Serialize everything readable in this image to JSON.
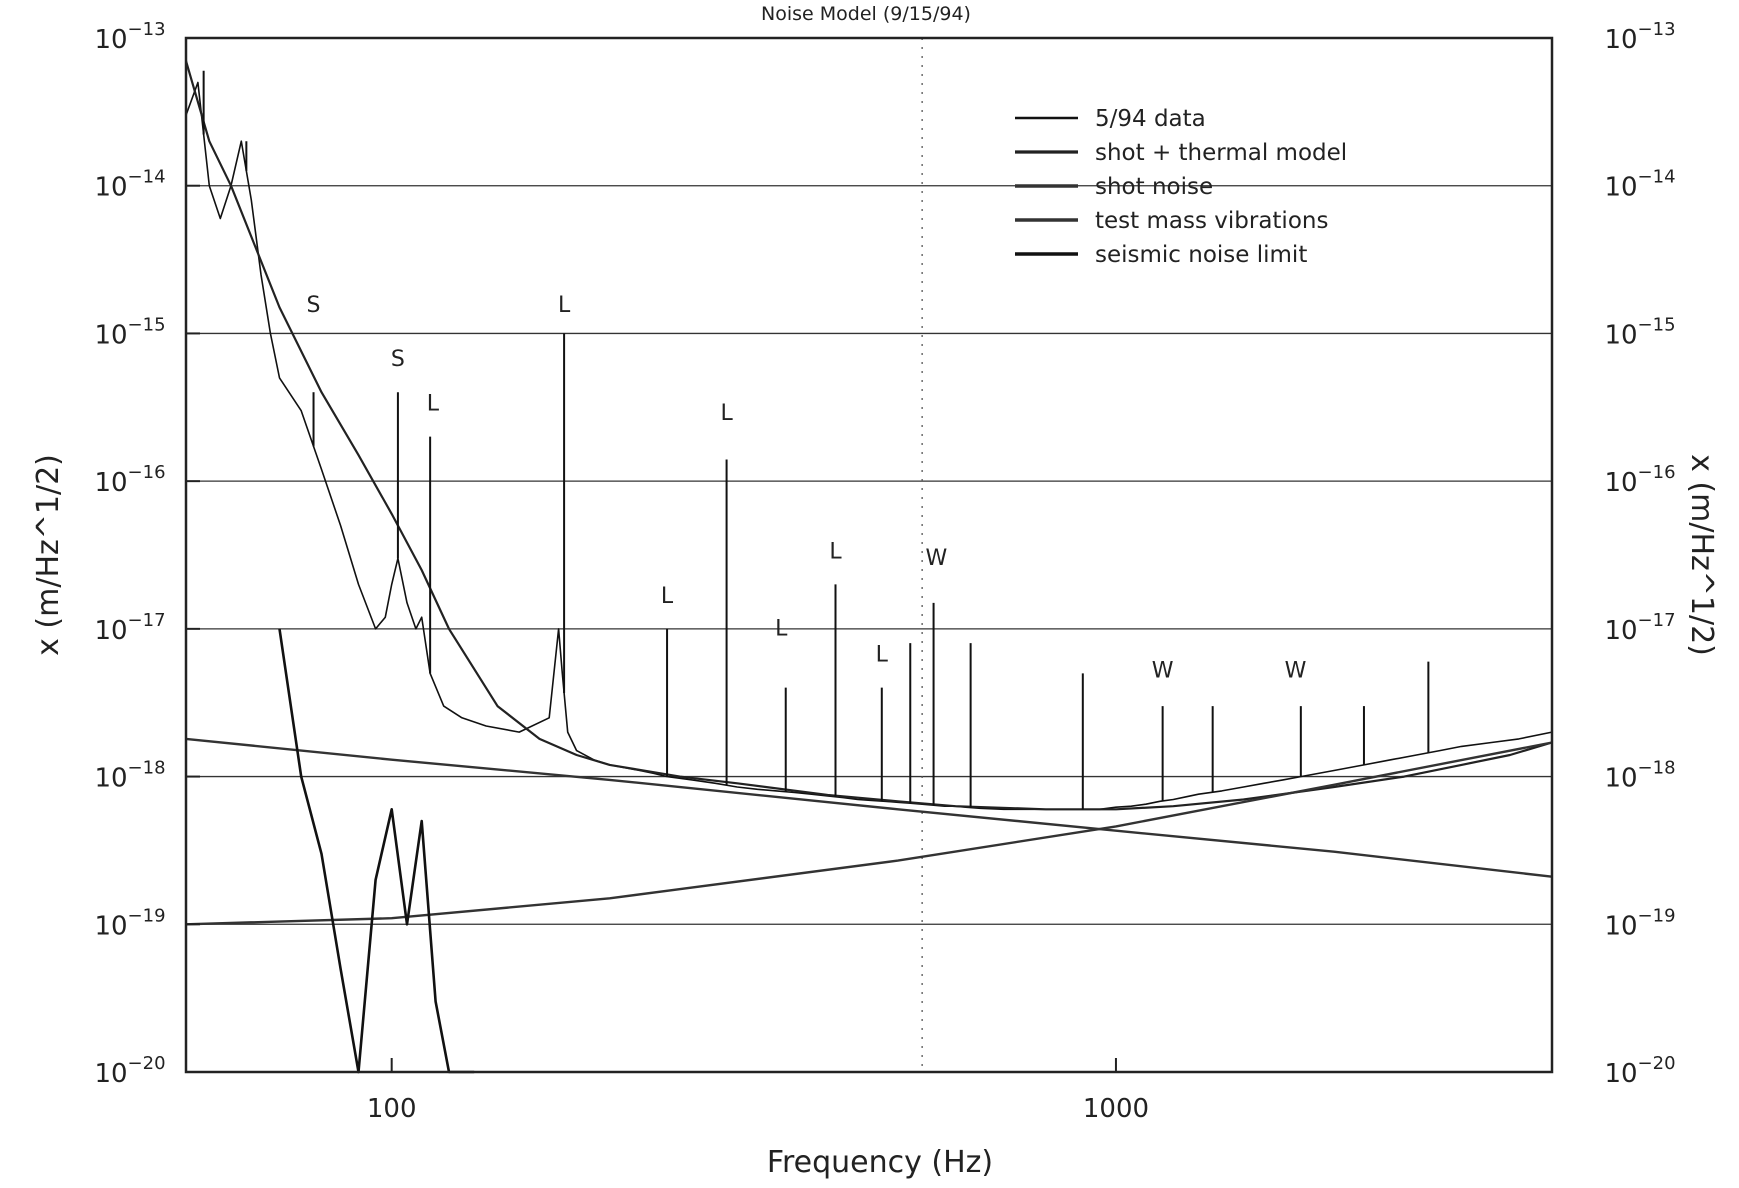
{
  "chart_data": {
    "type": "line",
    "title": "Noise Model (9/15/94)",
    "xlabel": "Frequency (Hz)",
    "ylabel": "x (m/Hz^1/2)",
    "x_scale": "log",
    "y_scale": "log",
    "xlim": [
      52,
      4000
    ],
    "ylim": [
      1e-20,
      1e-13
    ],
    "x_ticks": [
      100,
      1000
    ],
    "x_tick_labels": [
      "100",
      "1000"
    ],
    "y_ticks": [
      1e-13,
      1e-14,
      1e-15,
      1e-16,
      1e-17,
      1e-18,
      1e-19,
      1e-20
    ],
    "y_tick_mantissa": "10",
    "y_tick_exponents": [
      "−13",
      "−14",
      "−15",
      "−16",
      "−17",
      "−18",
      "−19",
      "−20"
    ],
    "grid": "horizontal at decades",
    "legend_position": "top-right",
    "series": [
      {
        "name": "5/94 data",
        "x": [
          52,
          54,
          56,
          58,
          60,
          62,
          64,
          66,
          68,
          70,
          75,
          80,
          85,
          90,
          95,
          98,
          100,
          102,
          105,
          108,
          110,
          113,
          118,
          125,
          135,
          150,
          165,
          170,
          172,
          175,
          180,
          190,
          200,
          220,
          230,
          240,
          260,
          280,
          300,
          320,
          340,
          360,
          380,
          400,
          420,
          440,
          460,
          480,
          500,
          520,
          540,
          560,
          580,
          600,
          620,
          650,
          700,
          750,
          800,
          850,
          900,
          950,
          1000,
          1050,
          1100,
          1150,
          1200,
          1250,
          1300,
          1400,
          1500,
          1600,
          1700,
          1800,
          2000,
          2200,
          2400,
          2600,
          2800,
          3000,
          3300,
          3600,
          4000
        ],
        "y": [
          3e-14,
          5e-14,
          1e-14,
          6e-15,
          1e-14,
          2e-14,
          8e-15,
          2.5e-15,
          1e-15,
          5e-16,
          3e-16,
          1.2e-16,
          5e-17,
          2e-17,
          1e-17,
          1.2e-17,
          2e-17,
          3e-17,
          1.5e-17,
          1e-17,
          1.2e-17,
          5e-18,
          3e-18,
          2.5e-18,
          2.2e-18,
          2e-18,
          2.5e-18,
          1e-17,
          5e-18,
          2e-18,
          1.5e-18,
          1.3e-18,
          1.2e-18,
          1.1e-18,
          1.05e-18,
          1e-18,
          9.5e-19,
          9e-19,
          8.5e-19,
          8.2e-19,
          8e-19,
          7.8e-19,
          7.6e-19,
          7.4e-19,
          7.2e-19,
          7e-19,
          6.9e-19,
          6.8e-19,
          6.7e-19,
          6.6e-19,
          6.5e-19,
          6.4e-19,
          6.3e-19,
          6.3e-19,
          6.2e-19,
          6.1e-19,
          6e-19,
          6e-19,
          6e-19,
          6e-19,
          6e-19,
          6e-19,
          6.2e-19,
          6.3e-19,
          6.5e-19,
          6.8e-19,
          7e-19,
          7.3e-19,
          7.6e-19,
          8e-19,
          8.5e-19,
          9e-19,
          9.5e-19,
          1e-18,
          1.1e-18,
          1.2e-18,
          1.3e-18,
          1.4e-18,
          1.5e-18,
          1.6e-18,
          1.7e-18,
          1.8e-18,
          2e-18
        ]
      },
      {
        "name": "shot + thermal model",
        "x": [
          52,
          56,
          60,
          70,
          80,
          90,
          100,
          110,
          120,
          140,
          160,
          180,
          200,
          250,
          300,
          400,
          500,
          600,
          800,
          1000,
          1200,
          1500,
          2000,
          2500,
          3000,
          3500,
          4000
        ],
        "y": [
          7e-14,
          2e-14,
          1e-14,
          1.5e-15,
          4e-16,
          1.5e-16,
          6e-17,
          2.5e-17,
          1e-17,
          3e-18,
          1.8e-18,
          1.4e-18,
          1.2e-18,
          1e-18,
          9e-19,
          7.5e-19,
          6.8e-19,
          6.3e-19,
          6e-19,
          6e-19,
          6.3e-19,
          7e-19,
          8.5e-19,
          1e-18,
          1.2e-18,
          1.4e-18,
          1.7e-18
        ]
      },
      {
        "name": "shot noise",
        "x": [
          52,
          100,
          200,
          500,
          1000,
          2000,
          4000
        ],
        "y": [
          1e-19,
          1.1e-19,
          1.5e-19,
          2.7e-19,
          4.6e-19,
          8.8e-19,
          1.7e-18
        ]
      },
      {
        "name": "test mass vibrations",
        "x": [
          52,
          100,
          200,
          500,
          1000,
          2000,
          4000
        ],
        "y": [
          1.8e-18,
          1.3e-18,
          9.5e-19,
          6e-19,
          4.3e-19,
          3.1e-19,
          2.1e-19
        ]
      },
      {
        "name": "seismic noise limit",
        "x": [
          70,
          75,
          80,
          85,
          90,
          95,
          100,
          105,
          110,
          115,
          120,
          125,
          130
        ],
        "y": [
          1e-17,
          1e-18,
          3e-19,
          5e-20,
          1e-20,
          2e-19,
          6e-19,
          1e-19,
          5e-19,
          3e-20,
          1e-20,
          1e-20,
          1e-20
        ]
      }
    ],
    "peaks": [
      {
        "x": 55,
        "y": 6e-14
      },
      {
        "x": 63,
        "y": 2e-14
      },
      {
        "x": 78,
        "y": 4e-16
      },
      {
        "x": 102,
        "y": 4e-16
      },
      {
        "x": 113,
        "y": 2e-16
      },
      {
        "x": 173,
        "y": 1e-15
      },
      {
        "x": 240,
        "y": 1e-17
      },
      {
        "x": 290,
        "y": 1.4e-16
      },
      {
        "x": 350,
        "y": 4e-18
      },
      {
        "x": 410,
        "y": 2e-17
      },
      {
        "x": 475,
        "y": 4e-18
      },
      {
        "x": 520,
        "y": 8e-18
      },
      {
        "x": 560,
        "y": 1.5e-17
      },
      {
        "x": 630,
        "y": 8e-18
      },
      {
        "x": 900,
        "y": 5e-18
      },
      {
        "x": 1160,
        "y": 3e-18
      },
      {
        "x": 1360,
        "y": 3e-18
      },
      {
        "x": 1800,
        "y": 3e-18
      },
      {
        "x": 2200,
        "y": 3e-18
      },
      {
        "x": 2700,
        "y": 6e-18
      }
    ],
    "annotations": [
      {
        "text": "S",
        "x": 78,
        "y": 1.4e-15
      },
      {
        "text": "S",
        "x": 102,
        "y": 6e-16
      },
      {
        "text": "L",
        "x": 114,
        "y": 3e-16
      },
      {
        "text": "L",
        "x": 173,
        "y": 1.4e-15
      },
      {
        "text": "L",
        "x": 290,
        "y": 2.6e-16
      },
      {
        "text": "L",
        "x": 240,
        "y": 1.5e-17
      },
      {
        "text": "L",
        "x": 345,
        "y": 9e-18
      },
      {
        "text": "L",
        "x": 410,
        "y": 3e-17
      },
      {
        "text": "L",
        "x": 475,
        "y": 6e-18
      },
      {
        "text": "W",
        "x": 565,
        "y": 2.7e-17
      },
      {
        "text": "W",
        "x": 1160,
        "y": 4.7e-18
      },
      {
        "text": "W",
        "x": 1770,
        "y": 4.7e-18
      }
    ]
  }
}
